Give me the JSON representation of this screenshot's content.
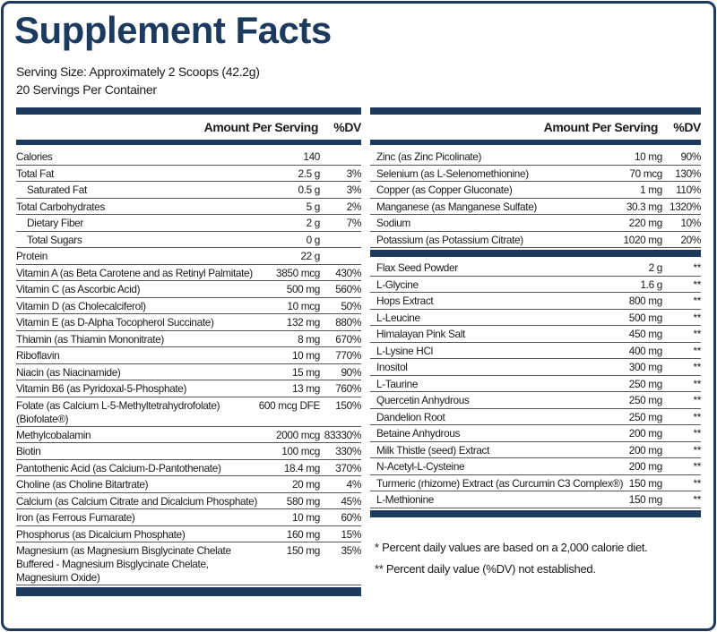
{
  "header": {
    "title": "Supplement Facts",
    "serving_size": "Serving Size: Approximately 2 Scoops (42.2g)",
    "servings": "20 Servings Per Container"
  },
  "left": {
    "header": {
      "amount": "Amount Per Serving",
      "dv": "%DV"
    },
    "rows": [
      {
        "name": "Calories",
        "amount": "140"
      },
      {
        "name": "Total Fat",
        "amount": "2.5 g",
        "dv": "3%"
      },
      {
        "name": "Saturated Fat",
        "amount": "0.5 g",
        "dv": "3%",
        "indent": true
      },
      {
        "name": "Total Carbohydrates",
        "amount": "5 g",
        "dv": "2%"
      },
      {
        "name": "Dietary Fiber",
        "amount": "2 g",
        "dv": "7%",
        "indent": true
      },
      {
        "name": "Total Sugars",
        "amount": "0 g",
        "indent": true
      },
      {
        "name": "Protein",
        "amount": "22 g"
      },
      {
        "name": "Vitamin A (as Beta Carotene and as Retinyl Palmitate)",
        "amount": "3850 mcg",
        "dv": "430%"
      },
      {
        "name": "Vitamin C (as Ascorbic Acid)",
        "amount": "500 mg",
        "dv": "560%"
      },
      {
        "name": "Vitamin D (as Cholecalciferol)",
        "amount": "10 mcg",
        "dv": "50%"
      },
      {
        "name": "Vitamin E (as D-Alpha Tocopherol Succinate)",
        "amount": "132 mg",
        "dv": "880%"
      },
      {
        "name": "Thiamin (as Thiamin Mononitrate)",
        "amount": "8 mg",
        "dv": "670%"
      },
      {
        "name": "Riboflavin",
        "amount": "10 mg",
        "dv": "770%"
      },
      {
        "name": "Niacin (as Niacinamide)",
        "amount": "15 mg",
        "dv": "90%"
      },
      {
        "name": "Vitamin B6 (as Pyridoxal-5-Phosphate)",
        "amount": "13 mg",
        "dv": "760%"
      },
      {
        "name": "Folate (as Calcium L-5-Methyltetrahydrofolate)(Biofolate®)",
        "amount": "600 mcg DFE",
        "dv": "150%"
      },
      {
        "name": "Methylcobalamin",
        "amount": "2000 mcg",
        "dv": "83330%"
      },
      {
        "name": "Biotin",
        "amount": "100 mcg",
        "dv": "330%"
      },
      {
        "name": "Pantothenic Acid (as Calcium-D-Pantothenate)",
        "amount": "18.4 mg",
        "dv": "370%"
      },
      {
        "name": "Choline (as Choline Bitartrate)",
        "amount": "20 mg",
        "dv": "4%"
      },
      {
        "name": "Calcium (as Calcium Citrate and Dicalcium Phosphate)",
        "amount": "580 mg",
        "dv": "45%"
      },
      {
        "name": "Iron (as Ferrous Fumarate)",
        "amount": "10 mg",
        "dv": "60%"
      },
      {
        "name": "Phosphorus (as Dicalcium Phosphate)",
        "amount": "160 mg",
        "dv": "15%"
      },
      {
        "name": "Magnesium (as Magnesium Bisglycinate Chelate Buffered - Magnesium Bisglycinate Chelate, Magnesium Oxide)",
        "amount": "150 mg",
        "dv": "35%"
      }
    ]
  },
  "right": {
    "header": {
      "amount": "Amount Per Serving",
      "dv": "%DV"
    },
    "sections": [
      {
        "rows": [
          {
            "name": "Zinc (as Zinc Picolinate)",
            "amount": "10 mg",
            "dv": "90%"
          },
          {
            "name": "Selenium (as L-Selenomethionine)",
            "amount": "70 mcg",
            "dv": "130%"
          },
          {
            "name": "Copper (as Copper Gluconate)",
            "amount": "1 mg",
            "dv": "110%"
          },
          {
            "name": "Manganese (as Manganese Sulfate)",
            "amount": "30.3 mg",
            "dv": "1320%"
          },
          {
            "name": "Sodium",
            "amount": "220 mg",
            "dv": "10%"
          },
          {
            "name": "Potassium (as Potassium Citrate)",
            "amount": "1020 mg",
            "dv": "20%"
          }
        ]
      },
      {
        "rows": [
          {
            "name": "Flax Seed Powder",
            "amount": "2 g",
            "dv": "**"
          },
          {
            "name": "L-Glycine",
            "amount": "1.6 g",
            "dv": "**"
          },
          {
            "name": "Hops Extract",
            "amount": "800 mg",
            "dv": "**"
          },
          {
            "name": "L-Leucine",
            "amount": "500 mg",
            "dv": "**"
          },
          {
            "name": "Himalayan Pink Salt",
            "amount": "450 mg",
            "dv": "**"
          },
          {
            "name": "L-Lysine HCl",
            "amount": "400 mg",
            "dv": "**"
          },
          {
            "name": "Inositol",
            "amount": "300 mg",
            "dv": "**"
          },
          {
            "name": "L-Taurine",
            "amount": "250 mg",
            "dv": "**"
          },
          {
            "name": "Quercetin Anhydrous",
            "amount": "250 mg",
            "dv": "**"
          },
          {
            "name": "Dandelion Root",
            "amount": "250 mg",
            "dv": "**"
          },
          {
            "name": "Betaine Anhydrous",
            "amount": "200 mg",
            "dv": "**"
          },
          {
            "name": "Milk Thistle (seed) Extract",
            "amount": "200 mg",
            "dv": "**"
          },
          {
            "name": "N-Acetyl-L-Cysteine",
            "amount": "200 mg",
            "dv": "**"
          },
          {
            "name": "Turmeric (rhizome) Extract (as Curcumin C3 Complex®)",
            "amount": "150 mg",
            "dv": "**"
          },
          {
            "name": "L-Methionine",
            "amount": "150 mg",
            "dv": "**"
          }
        ]
      }
    ]
  },
  "footnotes": [
    "* Percent daily values are based on a 2,000 calorie diet.",
    "** Percent daily value (%DV) not established."
  ]
}
